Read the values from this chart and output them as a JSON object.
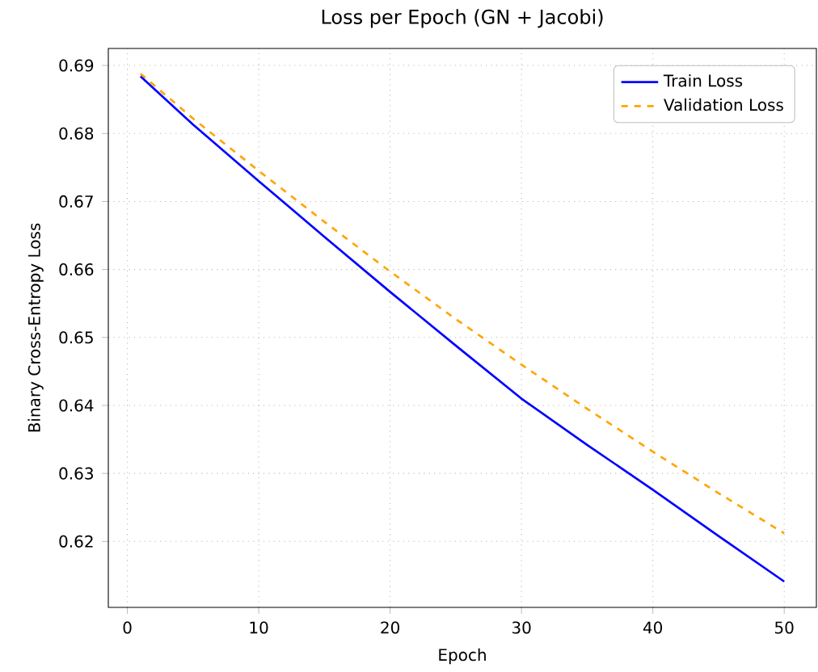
{
  "chart_data": {
    "type": "line",
    "title": "Loss per Epoch (GN + Jacobi)",
    "xlabel": "Epoch",
    "ylabel": "Binary Cross-Entropy Loss",
    "x": [
      1,
      5,
      10,
      15,
      20,
      25,
      30,
      35,
      40,
      45,
      50
    ],
    "series": [
      {
        "name": "Train Loss",
        "color": "#0000ff",
        "line_style": "solid",
        "values": [
          0.6884,
          0.6813,
          0.673,
          0.6648,
          0.6567,
          0.6488,
          0.641,
          0.6342,
          0.6276,
          0.6208,
          0.6141
        ]
      },
      {
        "name": "Validation Loss",
        "color": "#ffa500",
        "line_style": "dashed",
        "values": [
          0.6888,
          0.6822,
          0.6745,
          0.667,
          0.6597,
          0.6527,
          0.646,
          0.6395,
          0.6332,
          0.6271,
          0.6212
        ]
      }
    ],
    "xlim": [
      -1.45,
      52.45
    ],
    "ylim": [
      0.6103,
      0.6925
    ],
    "xticks": [
      0,
      10,
      20,
      30,
      40,
      50
    ],
    "yticks": [
      0.62,
      0.63,
      0.64,
      0.65,
      0.66,
      0.67,
      0.68,
      0.69
    ],
    "grid": true,
    "legend": "top right",
    "marker": "none"
  }
}
